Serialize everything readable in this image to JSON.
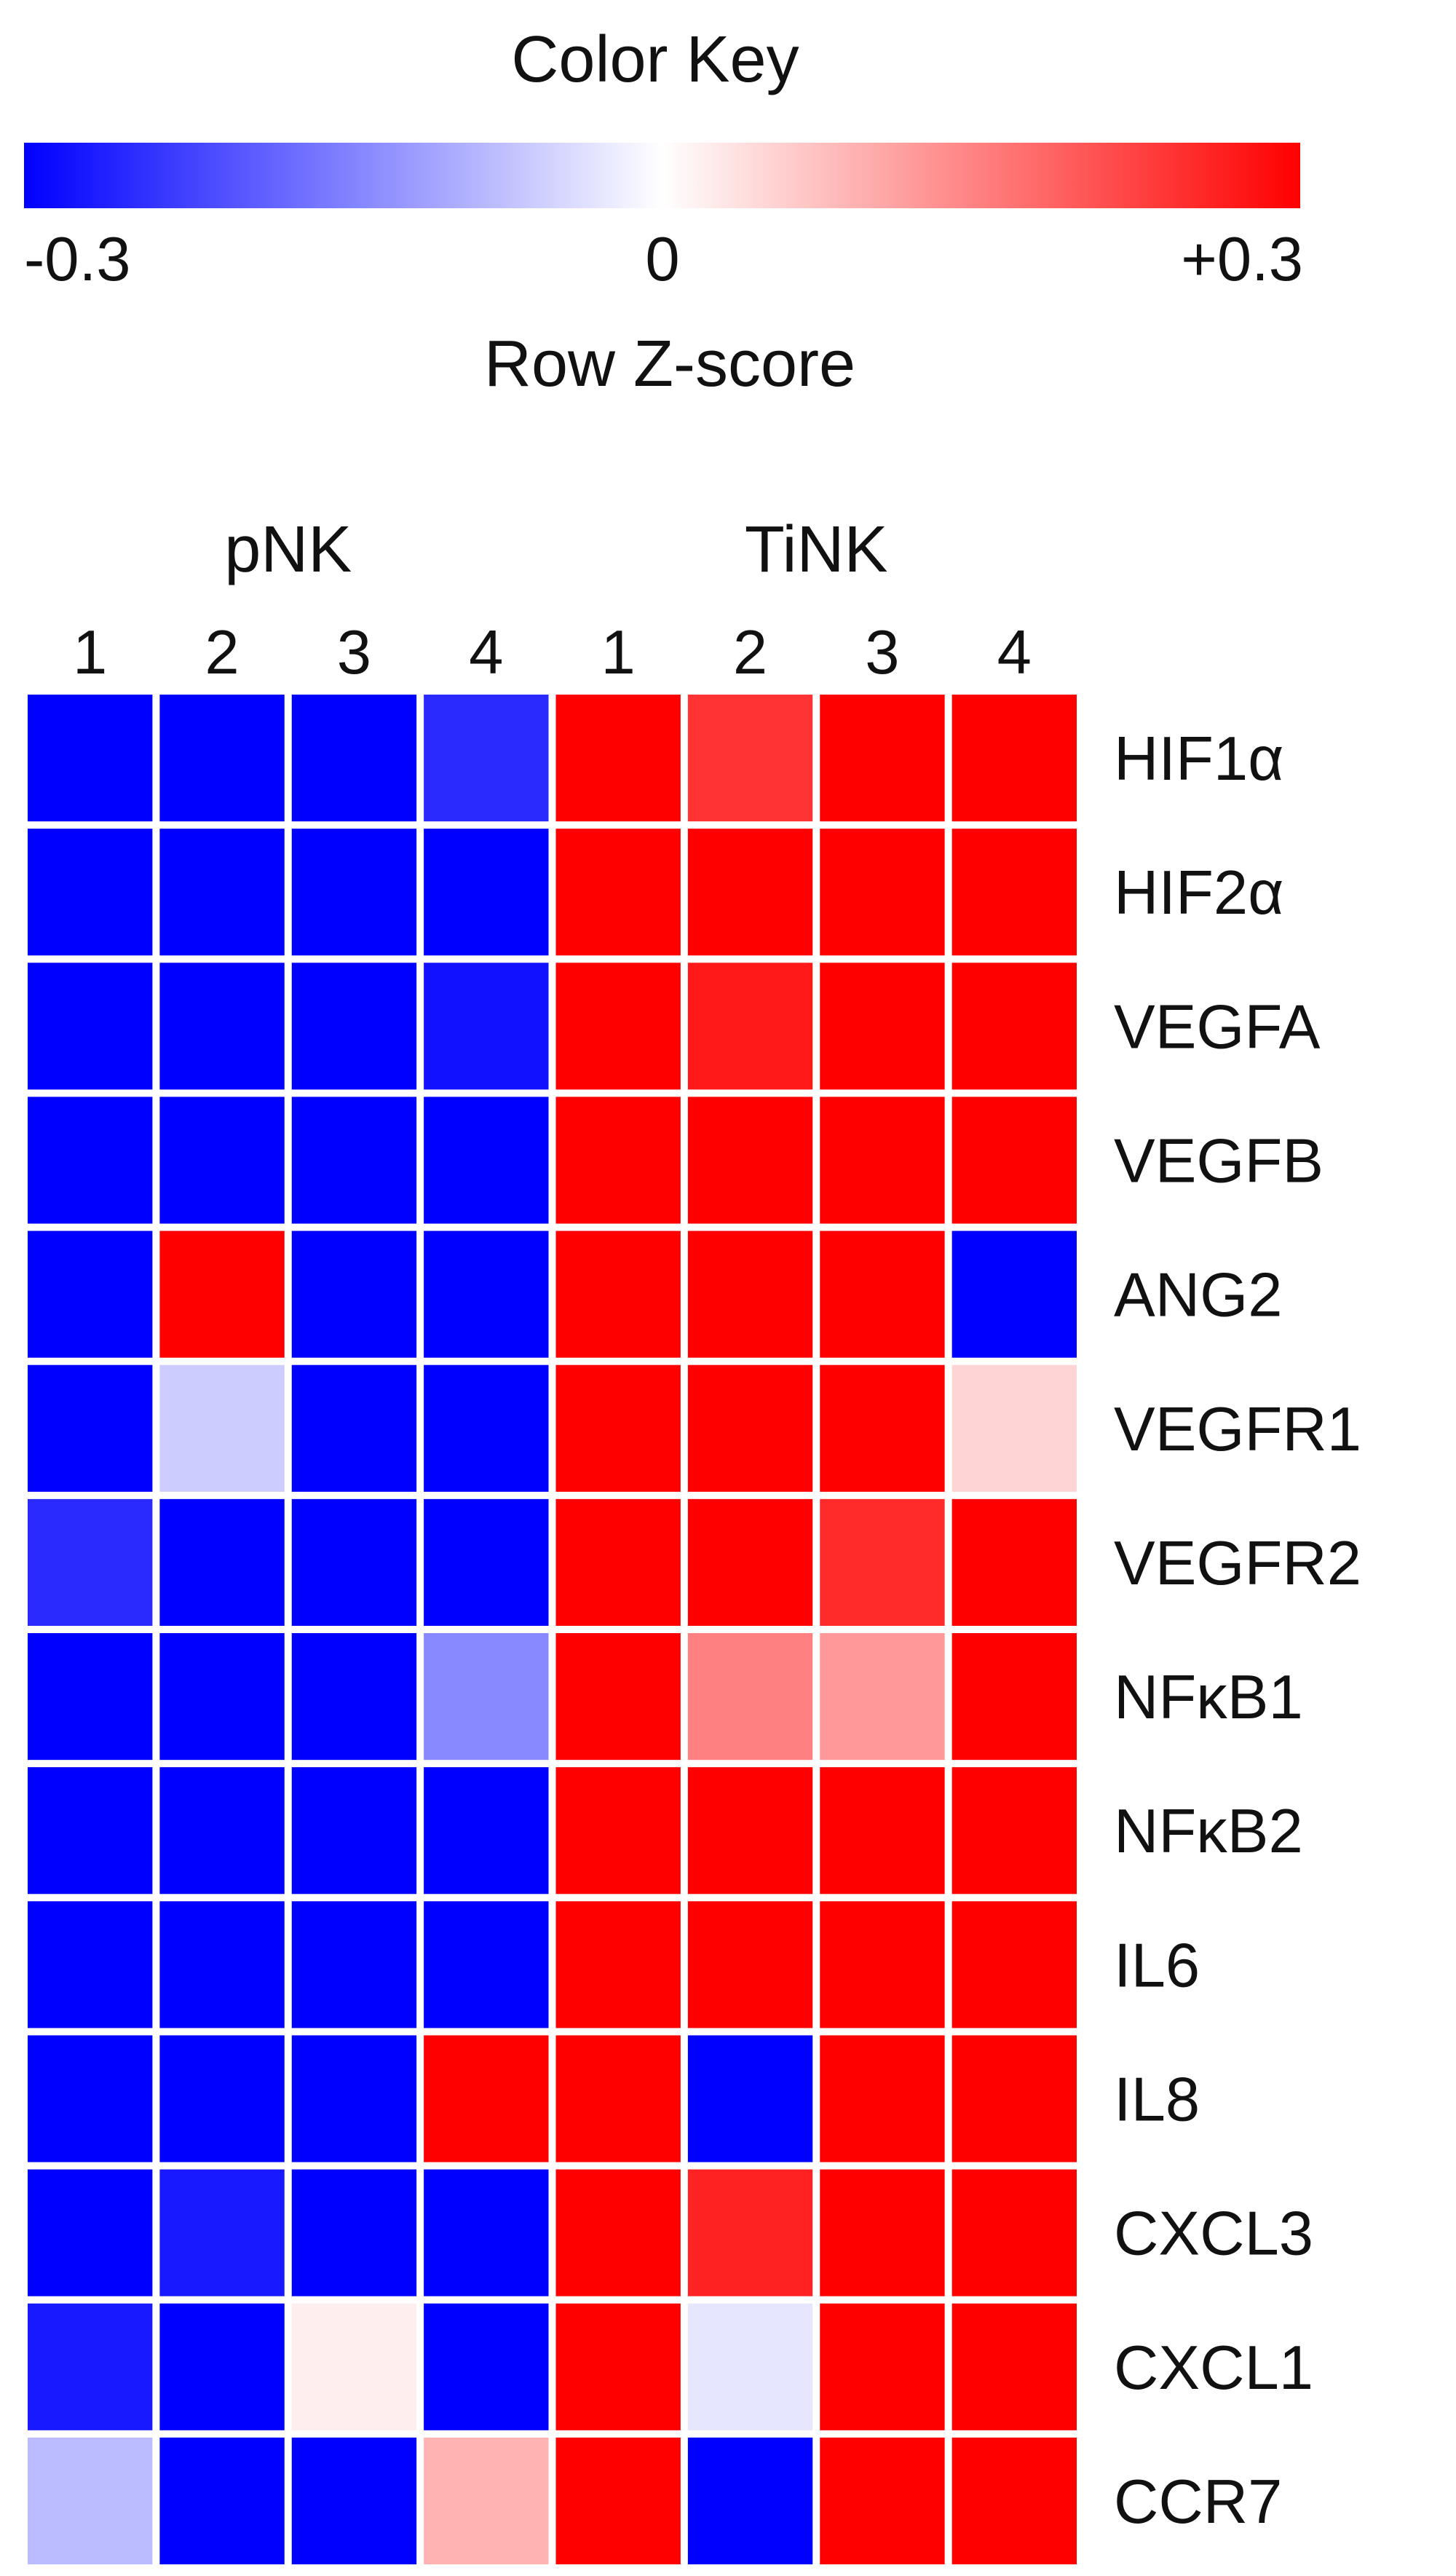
{
  "chart_data": {
    "type": "heatmap",
    "color_key": {
      "title": "Color Key",
      "label": "Row Z-score",
      "tick_labels": [
        "-0.3",
        "0",
        "+0.3"
      ],
      "range": [
        -0.3,
        0.3
      ],
      "low_color": "#0000ff",
      "mid_color": "#ffffff",
      "high_color": "#ff0000"
    },
    "groups": [
      {
        "name": "pNK",
        "columns": [
          "1",
          "2",
          "3",
          "4"
        ]
      },
      {
        "name": "TiNK",
        "columns": [
          "1",
          "2",
          "3",
          "4"
        ]
      }
    ],
    "rows": [
      "HIF1α",
      "HIF2α",
      "VEGFA",
      "VEGFB",
      "ANG2",
      "VEGFR1",
      "VEGFR2",
      "NFκB1",
      "NFκB2",
      "IL6",
      "IL8",
      "CXCL3",
      "CXCL1",
      "CCR7"
    ],
    "values": [
      [
        -0.3,
        -0.3,
        -0.3,
        -0.25,
        0.3,
        0.24,
        0.3,
        0.3
      ],
      [
        -0.3,
        -0.3,
        -0.3,
        -0.3,
        0.3,
        0.3,
        0.3,
        0.3
      ],
      [
        -0.3,
        -0.3,
        -0.3,
        -0.28,
        0.3,
        0.27,
        0.3,
        0.3
      ],
      [
        -0.3,
        -0.3,
        -0.3,
        -0.3,
        0.3,
        0.3,
        0.3,
        0.3
      ],
      [
        -0.3,
        0.3,
        -0.3,
        -0.3,
        0.3,
        0.3,
        0.3,
        -0.3
      ],
      [
        -0.3,
        -0.06,
        -0.3,
        -0.3,
        0.3,
        0.3,
        0.3,
        0.05
      ],
      [
        -0.25,
        -0.3,
        -0.3,
        -0.3,
        0.3,
        0.3,
        0.25,
        0.3
      ],
      [
        -0.3,
        -0.3,
        -0.3,
        -0.14,
        0.3,
        0.15,
        0.12,
        0.3
      ],
      [
        -0.3,
        -0.3,
        -0.3,
        -0.3,
        0.3,
        0.3,
        0.3,
        0.3
      ],
      [
        -0.3,
        -0.3,
        -0.3,
        -0.3,
        0.3,
        0.3,
        0.3,
        0.3
      ],
      [
        -0.3,
        -0.3,
        -0.3,
        0.3,
        0.3,
        -0.3,
        0.3,
        0.3
      ],
      [
        -0.3,
        -0.27,
        -0.3,
        -0.3,
        0.3,
        0.26,
        0.3,
        0.3
      ],
      [
        -0.27,
        -0.3,
        0.02,
        -0.3,
        0.3,
        -0.03,
        0.3,
        0.3
      ],
      [
        -0.08,
        -0.3,
        -0.3,
        0.09,
        0.3,
        -0.3,
        0.3,
        0.3
      ]
    ]
  }
}
